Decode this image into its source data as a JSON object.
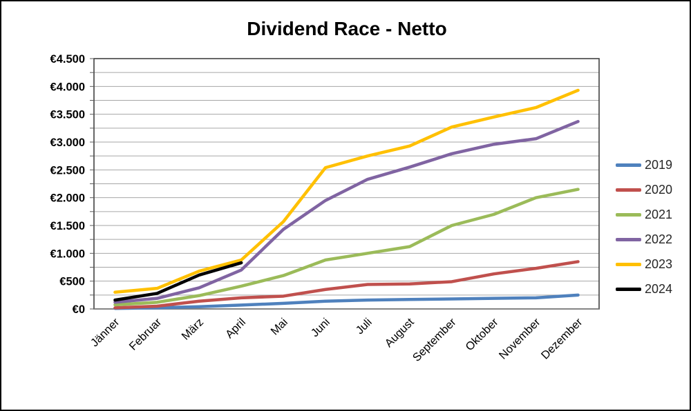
{
  "title": "Dividend Race - Netto",
  "chart_data": {
    "type": "line",
    "title": "Dividend Race - Netto",
    "xlabel": "",
    "ylabel": "",
    "currency": "EUR",
    "ylim": [
      0,
      4500
    ],
    "ytick_major": 500,
    "ytick_minor": 250,
    "grid": true,
    "legend_position": "right",
    "y_tick_labels": [
      "€0",
      "€500",
      "€1.000",
      "€1.500",
      "€2.000",
      "€2.500",
      "€3.000",
      "€3.500",
      "€4.000",
      "€4.500"
    ],
    "categories": [
      "Jänner",
      "Februar",
      "März",
      "April",
      "Mai",
      "Juni",
      "Juli",
      "August",
      "September",
      "Oktober",
      "November",
      "Dezember"
    ],
    "series": [
      {
        "name": "2019",
        "color": "#4F81BD",
        "values": [
          10,
          20,
          40,
          70,
          100,
          140,
          160,
          170,
          180,
          190,
          200,
          250
        ]
      },
      {
        "name": "2020",
        "color": "#C0504D",
        "values": [
          20,
          50,
          140,
          200,
          230,
          350,
          440,
          450,
          490,
          630,
          730,
          850
        ]
      },
      {
        "name": "2021",
        "color": "#9BBB59",
        "values": [
          75,
          120,
          240,
          410,
          600,
          880,
          1000,
          1120,
          1500,
          1700,
          2000,
          2150
        ]
      },
      {
        "name": "2022",
        "color": "#8064A2",
        "values": [
          120,
          190,
          380,
          700,
          1430,
          1950,
          2330,
          2550,
          2790,
          2960,
          3060,
          3370
        ]
      },
      {
        "name": "2023",
        "color": "#FFC000",
        "values": [
          300,
          370,
          680,
          880,
          1570,
          2540,
          2750,
          2930,
          3270,
          3450,
          3620,
          3930
        ]
      },
      {
        "name": "2024",
        "color": "#000000",
        "values": [
          160,
          280,
          610,
          830,
          null,
          null,
          null,
          null,
          null,
          null,
          null,
          null
        ]
      }
    ],
    "colors": {
      "gridline": "#A6A6A6",
      "plot_border": "#404040",
      "axis_line": "#808080",
      "tick": "#595959",
      "text": "#000000"
    }
  }
}
